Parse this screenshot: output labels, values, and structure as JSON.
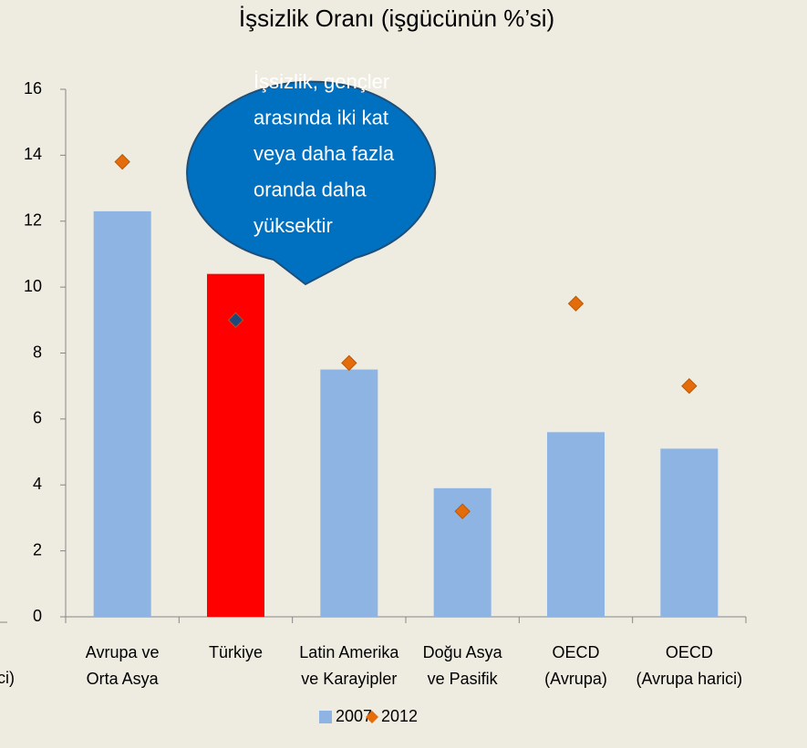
{
  "chart_data": {
    "type": "bar_marker",
    "title": "İşsizlik Oranı (işgücünün %’si)",
    "clipped_label": "ci)",
    "categories": [
      [
        "Avrupa ve",
        "Orta Asya"
      ],
      [
        "Türkiye"
      ],
      [
        "Latin Amerika",
        "ve Karayipler"
      ],
      [
        "Doğu Asya",
        "ve Pasifik"
      ],
      [
        "OECD",
        "(Avrupa)"
      ],
      [
        "OECD",
        "(Avrupa harici)"
      ]
    ],
    "series": [
      {
        "name": "2007",
        "kind": "bar",
        "color": "#8db4e2",
        "point_colors": [
          null,
          "#ff0000",
          null,
          null,
          null,
          null
        ],
        "values": [
          12.3,
          10.4,
          7.5,
          3.9,
          5.6,
          5.1
        ]
      },
      {
        "name": "2012",
        "kind": "diamond",
        "color": "#e46c0a",
        "point_colors": [
          null,
          "#1f497d",
          null,
          null,
          null,
          null
        ],
        "values": [
          13.8,
          9.0,
          7.7,
          3.2,
          9.5,
          7.0
        ]
      }
    ],
    "ylim": [
      0,
      16
    ],
    "yticks": [
      0,
      2,
      4,
      6,
      8,
      10,
      12,
      14,
      16
    ],
    "grid": false,
    "callout": {
      "lines": [
        "İşsizlik, gençler",
        "arasında iki kat",
        "veya daha fazla",
        "oranda daha",
        "yüksektir"
      ],
      "color": "#0070c0"
    },
    "legend": "bottom"
  }
}
